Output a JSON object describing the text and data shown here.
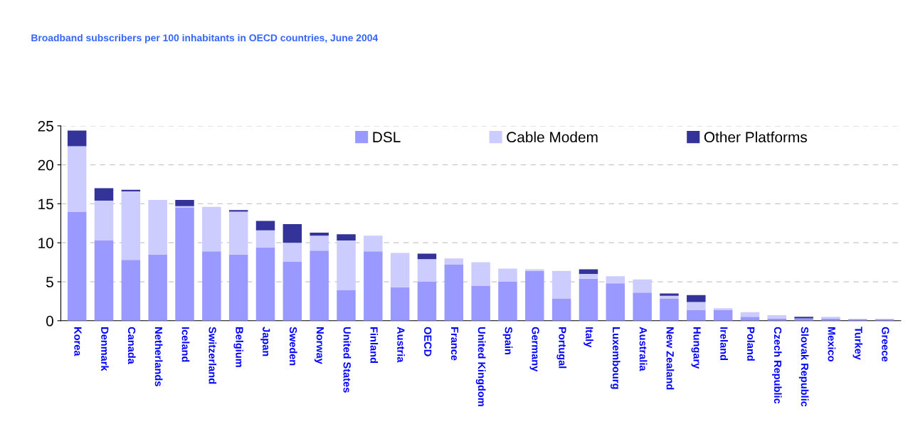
{
  "chart_data": {
    "type": "bar",
    "stacked": true,
    "title": "Broadband subscribers per 100 inhabitants in OECD countries, June 2004",
    "categories": [
      "Korea",
      "Denmark",
      "Canada",
      "Netherlands",
      "Iceland",
      "Switzerland",
      "Belgium",
      "Japan",
      "Sweden",
      "Norway",
      "United States",
      "Finland",
      "Austria",
      "OECD",
      "France",
      "United Kingdom",
      "Spain",
      "Germany",
      "Portugal",
      "Italy",
      "Luxembourg",
      "Australia",
      "New Zealand",
      "Hungary",
      "Ireland",
      "Poland",
      "Czech Republic",
      "Slovak Republic",
      "Mexico",
      "Turkey",
      "Greece"
    ],
    "series": [
      {
        "name": "DSL",
        "color": "#9999ff",
        "values": [
          14.0,
          10.3,
          7.8,
          8.5,
          14.5,
          8.9,
          8.5,
          9.4,
          7.6,
          9.0,
          3.9,
          8.9,
          4.3,
          5.0,
          7.2,
          4.5,
          5.0,
          6.4,
          2.8,
          5.4,
          4.8,
          3.6,
          2.8,
          1.4,
          1.4,
          0.5,
          0.3,
          0.3,
          0.3,
          0.2,
          0.2
        ]
      },
      {
        "name": "Cable Modem",
        "color": "#ccccff",
        "values": [
          8.4,
          5.1,
          8.8,
          7.0,
          0.2,
          5.7,
          5.5,
          2.2,
          2.4,
          1.9,
          6.4,
          2.0,
          4.4,
          2.9,
          0.8,
          3.0,
          1.7,
          0.2,
          3.6,
          0.6,
          0.9,
          1.7,
          0.4,
          1.0,
          0.2,
          0.6,
          0.4,
          0,
          0.2,
          0,
          0
        ]
      },
      {
        "name": "Other Platforms",
        "color": "#333399",
        "values": [
          2.0,
          1.6,
          0.2,
          0,
          0.8,
          0,
          0.2,
          1.2,
          2.4,
          0.4,
          0.8,
          0,
          0,
          0.7,
          0,
          0,
          0,
          0,
          0,
          0.6,
          0,
          0,
          0.3,
          0.9,
          0,
          0,
          0,
          0.2,
          0,
          0,
          0
        ]
      }
    ],
    "ylim": [
      0,
      25
    ],
    "yticks": [
      0,
      5,
      10,
      15,
      20,
      25
    ],
    "grid": "y",
    "legend": "top"
  }
}
